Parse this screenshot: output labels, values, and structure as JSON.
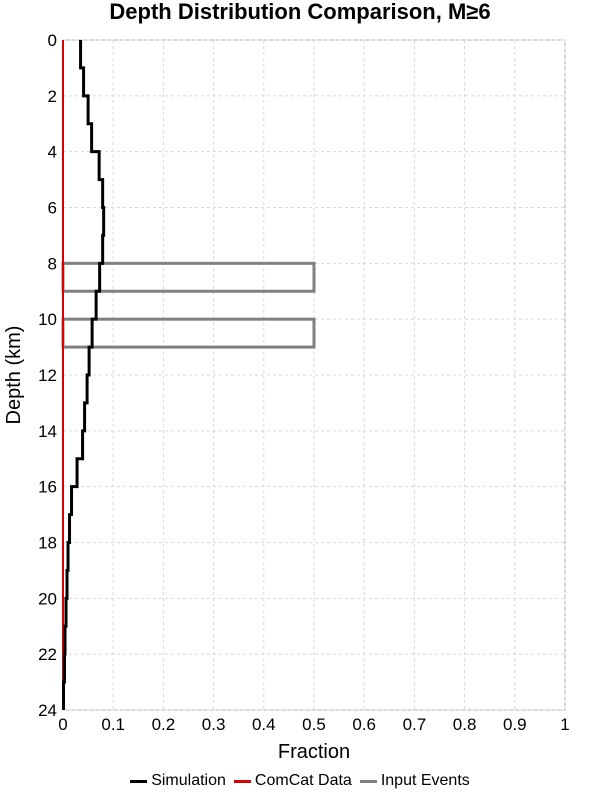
{
  "chart_data": {
    "type": "line",
    "title": "Depth Distribution Comparison, M≥6",
    "xlabel": "Fraction",
    "ylabel": "Depth (km)",
    "xlim": [
      0,
      1
    ],
    "ylim": [
      24,
      0
    ],
    "x_ticks": [
      "0",
      "0.1",
      "0.2",
      "0.3",
      "0.4",
      "0.5",
      "0.6",
      "0.7",
      "0.8",
      "0.9",
      "1"
    ],
    "x_tick_values": [
      0,
      0.1,
      0.2,
      0.3,
      0.4,
      0.5,
      0.6,
      0.7,
      0.8,
      0.9,
      1
    ],
    "y_ticks": [
      "0",
      "2",
      "4",
      "6",
      "8",
      "10",
      "12",
      "14",
      "16",
      "18",
      "20",
      "22",
      "24"
    ],
    "y_tick_values": [
      0,
      2,
      4,
      6,
      8,
      10,
      12,
      14,
      16,
      18,
      20,
      22,
      24
    ],
    "grid": true,
    "legend_position": "bottom",
    "series": [
      {
        "name": "Simulation",
        "color": "#000000",
        "style": "step",
        "depth_bins": [
          [
            0,
            1
          ],
          [
            1,
            2
          ],
          [
            2,
            3
          ],
          [
            3,
            4
          ],
          [
            4,
            5
          ],
          [
            5,
            6
          ],
          [
            6,
            7
          ],
          [
            7,
            8
          ],
          [
            8,
            9
          ],
          [
            9,
            10
          ],
          [
            10,
            11
          ],
          [
            11,
            12
          ],
          [
            12,
            13
          ],
          [
            13,
            14
          ],
          [
            14,
            15
          ],
          [
            15,
            16
          ],
          [
            16,
            17
          ],
          [
            17,
            18
          ],
          [
            18,
            19
          ],
          [
            19,
            20
          ],
          [
            20,
            21
          ],
          [
            21,
            22
          ],
          [
            22,
            23
          ],
          [
            23,
            24
          ]
        ],
        "values": [
          0.035,
          0.041,
          0.05,
          0.057,
          0.072,
          0.079,
          0.081,
          0.079,
          0.073,
          0.066,
          0.058,
          0.052,
          0.048,
          0.043,
          0.039,
          0.028,
          0.017,
          0.013,
          0.01,
          0.008,
          0.006,
          0.004,
          0.003,
          0.001
        ]
      },
      {
        "name": "ComCat Data",
        "color": "#dd0000",
        "style": "step",
        "depth_bins": [
          [
            0,
            24
          ]
        ],
        "values": [
          0
        ]
      },
      {
        "name": "Input Events",
        "color": "#808080",
        "style": "bar",
        "depth_bins": [
          [
            8,
            9
          ],
          [
            10,
            11
          ]
        ],
        "values": [
          0.5,
          0.5
        ]
      }
    ]
  }
}
